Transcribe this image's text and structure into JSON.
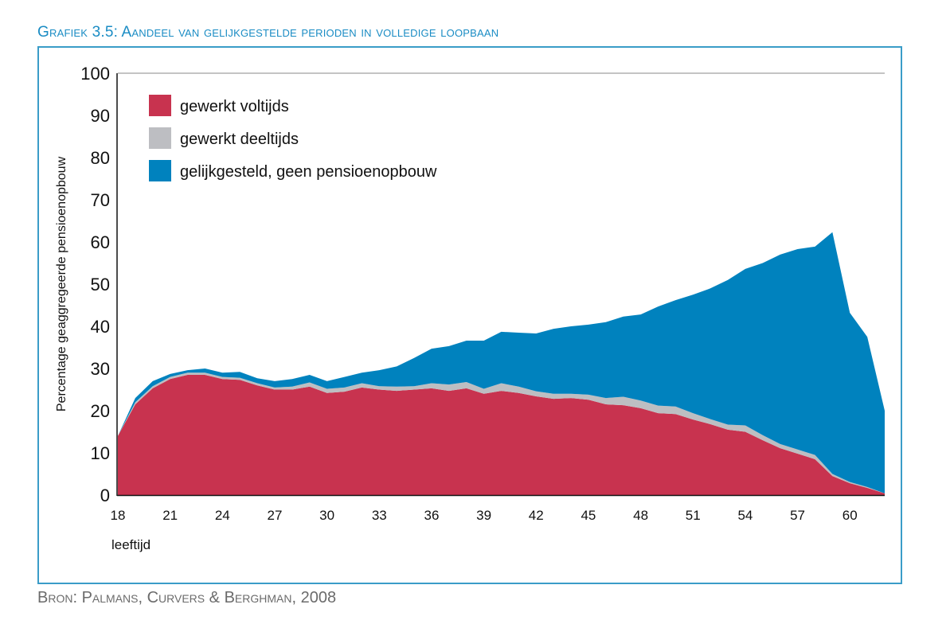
{
  "title": "Grafiek 3.5: Aandeel van gelijkgestelde perioden in volledige loopbaan",
  "source": "Bron: Palmans, Curvers & Berghman, 2008",
  "chart_data": {
    "type": "area",
    "stacked": true,
    "title": "Grafiek 3.5: Aandeel van gelijkgestelde perioden in volledige loopbaan",
    "xlabel": "leeftijd",
    "ylabel": "Percentage geaggregeerde pensioenopbouw",
    "xlim": [
      18,
      62
    ],
    "ylim": [
      0,
      100
    ],
    "yticks": [
      "0",
      "10",
      "20",
      "30",
      "40",
      "50",
      "60",
      "70",
      "80",
      "90",
      "100"
    ],
    "xticks": [
      "18",
      "21",
      "24",
      "27",
      "30",
      "33",
      "36",
      "39",
      "42",
      "45",
      "48",
      "51",
      "54",
      "57",
      "60"
    ],
    "legend_position": "top-left",
    "x": [
      18,
      19,
      20,
      21,
      22,
      23,
      24,
      25,
      26,
      27,
      28,
      29,
      30,
      31,
      32,
      33,
      34,
      35,
      36,
      37,
      38,
      39,
      40,
      41,
      42,
      43,
      44,
      45,
      46,
      47,
      48,
      49,
      50,
      51,
      52,
      53,
      54,
      55,
      56,
      57,
      58,
      59,
      60,
      61,
      62
    ],
    "series": [
      {
        "name": "gewerkt voltijds",
        "color": "#c8334f",
        "values": [
          14,
          21.5,
          25.3,
          27.5,
          28.5,
          28.5,
          27.5,
          27.3,
          26,
          25,
          25,
          25.7,
          24.2,
          24.5,
          25.5,
          25,
          24.7,
          25,
          25.3,
          24.7,
          25.3,
          24,
          24.7,
          24.2,
          23.4,
          22.8,
          23,
          22.6,
          21.5,
          21.3,
          20.6,
          19.4,
          19.2,
          17.9,
          16.8,
          15.5,
          15,
          13,
          11.1,
          9.8,
          8.5,
          4.5,
          2.8,
          1.7,
          0.4
        ]
      },
      {
        "name": "gewerkt deeltijds",
        "color": "#bdbec2",
        "values": [
          0,
          0.5,
          0.5,
          0.5,
          0.5,
          0.5,
          0.5,
          0.5,
          0.5,
          0.5,
          0.7,
          1,
          1,
          1,
          1,
          0.8,
          1,
          0.8,
          1.2,
          1.5,
          1.5,
          1.2,
          1.8,
          1.5,
          1.2,
          1.2,
          1,
          1.2,
          1.5,
          2,
          1.8,
          1.8,
          1.8,
          1.5,
          1.2,
          1.2,
          1.5,
          1.2,
          1,
          1,
          1,
          0.5,
          0.3,
          0.2,
          0
        ]
      },
      {
        "name": "gelijkgesteld, geen pensioenopbouw",
        "color": "#0082be",
        "values": [
          0,
          1,
          1.2,
          0.7,
          0.6,
          1,
          1,
          1.4,
          1.2,
          1.5,
          1.8,
          1.8,
          1.8,
          2.5,
          2.5,
          3.8,
          4.8,
          6.7,
          8.2,
          9.1,
          9.8,
          11.4,
          12.2,
          12.8,
          13.7,
          15.4,
          16,
          16.6,
          18,
          19,
          20.4,
          23.5,
          25.2,
          28.1,
          31,
          34.3,
          37.1,
          40.8,
          44.9,
          47.5,
          49.4,
          57.3,
          40.1,
          35.6,
          19.6
        ]
      }
    ]
  }
}
